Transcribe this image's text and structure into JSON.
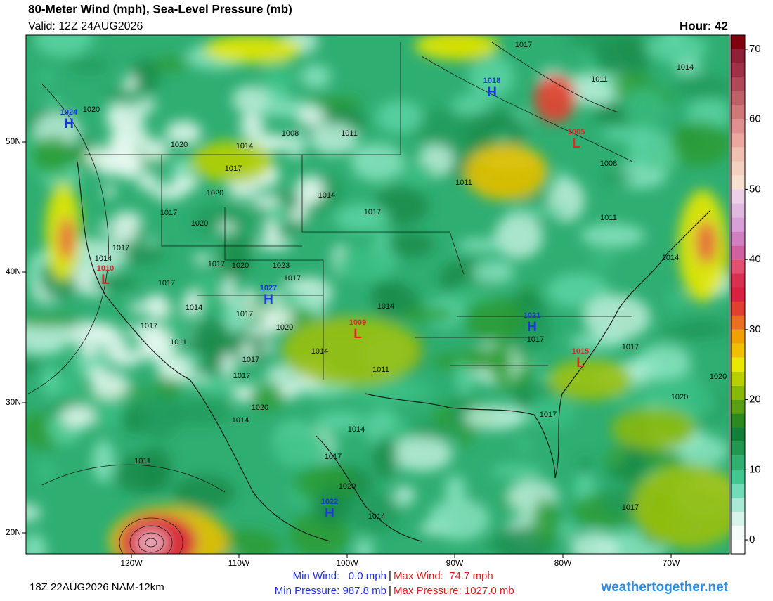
{
  "header": {
    "title": "80-Meter Wind (mph), Sea-Level Pressure (mb)",
    "valid": "Valid: 12Z 24AUG2026",
    "hour": "Hour: 42"
  },
  "map": {
    "lon_labels": [
      "120W",
      "110W",
      "100W",
      "90W",
      "80W",
      "70W"
    ],
    "lat_labels": [
      "50N",
      "40N",
      "30N",
      "20N"
    ],
    "pressure_centers": [
      {
        "value": "1024",
        "type": "H"
      },
      {
        "value": "1018",
        "type": "H"
      },
      {
        "value": "1005",
        "type": "L"
      },
      {
        "value": "1010",
        "type": "L"
      },
      {
        "value": "1027",
        "type": "H"
      },
      {
        "value": "1009",
        "type": "L"
      },
      {
        "value": "1021",
        "type": "H"
      },
      {
        "value": "1015",
        "type": "L"
      },
      {
        "value": "1022",
        "type": "H"
      }
    ],
    "isobar_labels": [
      "1020",
      "1020",
      "1014",
      "1008",
      "1017",
      "1011",
      "1020",
      "1017",
      "1020",
      "1014",
      "1017",
      "1017",
      "1014",
      "1017",
      "1020",
      "1023",
      "1017",
      "1017",
      "1014",
      "1017",
      "1017",
      "1020",
      "1011",
      "1014",
      "1014",
      "1011",
      "1017",
      "1017",
      "1020",
      "1014",
      "1014",
      "1017",
      "1020",
      "1014",
      "1011",
      "1017",
      "1011",
      "1014",
      "1008",
      "1011",
      "1011",
      "1014",
      "1017",
      "1017",
      "1020",
      "1020",
      "1017",
      "1017"
    ]
  },
  "colorbar": {
    "range": [
      -2,
      72
    ],
    "ticks": [
      0,
      10,
      20,
      30,
      40,
      50,
      60,
      70
    ],
    "colors": [
      "#ffffff",
      "#f4fbf8",
      "#d8f3ea",
      "#a8ead6",
      "#70dcb8",
      "#40c890",
      "#30b070",
      "#209850",
      "#108038",
      "#2a8a20",
      "#5aa010",
      "#88b808",
      "#b8d000",
      "#e8e800",
      "#f0c000",
      "#f0a000",
      "#e87020",
      "#e04030",
      "#d82040",
      "#d83050",
      "#e05070",
      "#d060a0",
      "#d080c0",
      "#d8a0d8",
      "#e0b8e0",
      "#ecd0e8",
      "#f8e0d0",
      "#f4d0c0",
      "#f0c0b0",
      "#eaa8a0",
      "#e09090",
      "#d07878",
      "#c06068",
      "#b04858",
      "#a03048",
      "#902038",
      "#800010"
    ]
  },
  "footer": {
    "run": "18Z 22AUG2026 NAM-12km",
    "min_wind": "Min Wind:   0.0 mph",
    "separator": "|",
    "max_wind": "Max Wind:  74.7 mph",
    "min_pressure": "Min Pressure: 987.8 mb",
    "max_pressure": "Max Pressure: 1027.0 mb",
    "site": "weathertogether.net"
  }
}
